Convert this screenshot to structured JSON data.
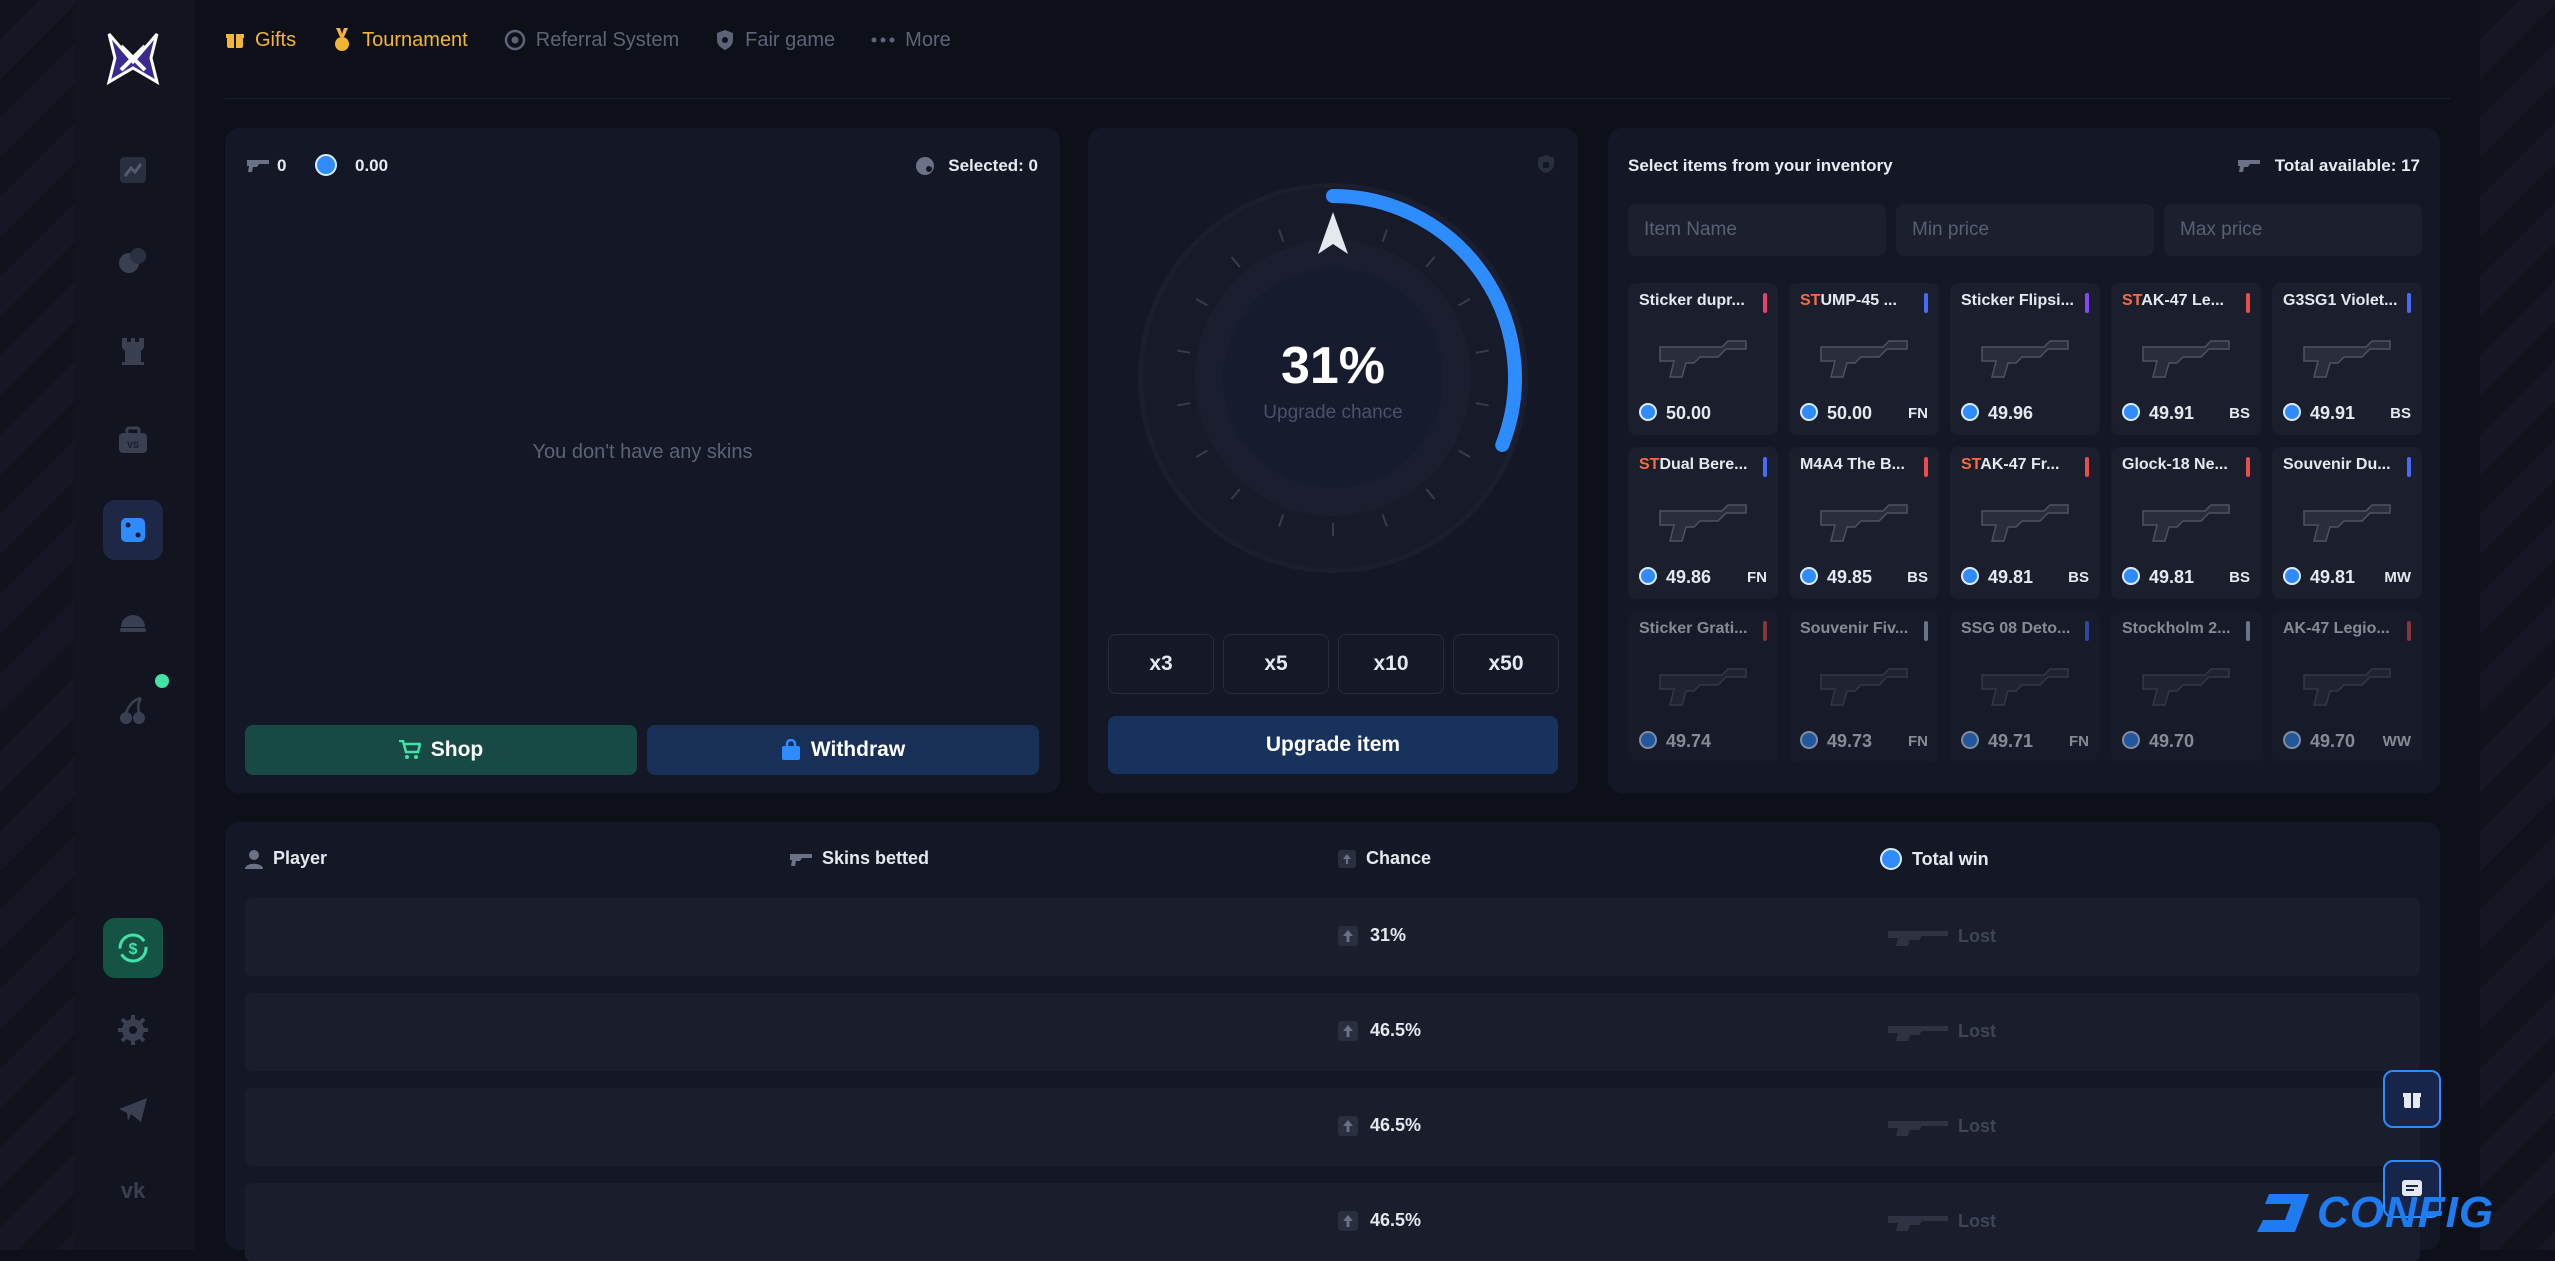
{
  "nav": {
    "gifts": "Gifts",
    "tournament": "Tournament",
    "referral": "Referral System",
    "fair": "Fair game",
    "more": "More"
  },
  "left_panel": {
    "gun_count": "0",
    "balance": "0.00",
    "selected": "Selected: 0",
    "empty": "You don't have any skins",
    "shop": "Shop",
    "withdraw": "Withdraw"
  },
  "upgrade": {
    "percent": "31%",
    "label": "Upgrade chance",
    "chance_fraction": 0.31,
    "multipliers": [
      "x3",
      "x5",
      "x10",
      "x50"
    ],
    "button": "Upgrade item"
  },
  "inventory": {
    "title": "Select items from your inventory",
    "total": "Total available: 17",
    "placeholders": {
      "name": "Item Name",
      "min": "Min price",
      "max": "Max price"
    },
    "items": [
      {
        "st": "",
        "name": "Sticker dupr...",
        "price": "50.00",
        "wear": "",
        "rarity": "#e8406c"
      },
      {
        "st": "ST",
        "name": "UMP-45 ...",
        "price": "50.00",
        "wear": "FN",
        "rarity": "#4b69ff"
      },
      {
        "st": "",
        "name": "Sticker Flipsi...",
        "price": "49.96",
        "wear": "",
        "rarity": "#8847ff"
      },
      {
        "st": "ST",
        "name": "AK-47 Le...",
        "price": "49.91",
        "wear": "BS",
        "rarity": "#eb4b4b"
      },
      {
        "st": "",
        "name": "G3SG1 Violet...",
        "price": "49.91",
        "wear": "BS",
        "rarity": "#4b69ff"
      },
      {
        "st": "ST",
        "name": "Dual Bere...",
        "price": "49.86",
        "wear": "FN",
        "rarity": "#4b69ff"
      },
      {
        "st": "",
        "name": "M4A4 The B...",
        "price": "49.85",
        "wear": "BS",
        "rarity": "#eb4b4b"
      },
      {
        "st": "ST",
        "name": "AK-47 Fr...",
        "price": "49.81",
        "wear": "BS",
        "rarity": "#eb4b4b"
      },
      {
        "st": "",
        "name": "Glock-18 Ne...",
        "price": "49.81",
        "wear": "BS",
        "rarity": "#eb4b4b"
      },
      {
        "st": "",
        "name": "Souvenir Du...",
        "price": "49.81",
        "wear": "MW",
        "rarity": "#4b69ff"
      },
      {
        "st": "",
        "name": "Sticker Grati...",
        "price": "49.74",
        "wear": "",
        "rarity": "#eb4b4b"
      },
      {
        "st": "",
        "name": "Souvenir Fiv...",
        "price": "49.73",
        "wear": "FN",
        "rarity": "#b0c3d9"
      },
      {
        "st": "",
        "name": "SSG 08 Deto...",
        "price": "49.71",
        "wear": "FN",
        "rarity": "#4b69ff"
      },
      {
        "st": "",
        "name": "Stockholm 2...",
        "price": "49.70",
        "wear": "",
        "rarity": "#b0c3d9"
      },
      {
        "st": "",
        "name": "AK-47 Legio...",
        "price": "49.70",
        "wear": "WW",
        "rarity": "#eb4b4b"
      }
    ]
  },
  "history": {
    "headers": {
      "player": "Player",
      "skins": "Skins betted",
      "chance": "Chance",
      "win": "Total win"
    },
    "rows": [
      {
        "chance": "31%",
        "result": "Lost"
      },
      {
        "chance": "46.5%",
        "result": "Lost"
      },
      {
        "chance": "46.5%",
        "result": "Lost"
      },
      {
        "chance": "46.5%",
        "result": "Lost"
      }
    ]
  },
  "watermark": "CONFIG",
  "colors": {
    "accent": "#2d8cff",
    "gold": "#f2b634",
    "green": "#41e3a6"
  }
}
